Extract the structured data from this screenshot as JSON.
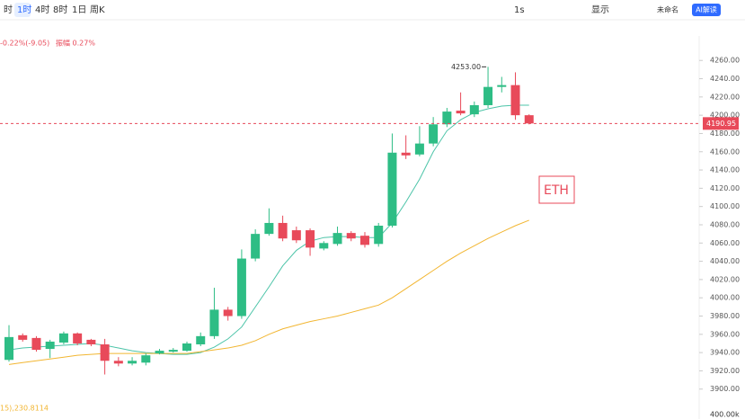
{
  "toolbar": {
    "intervals": [
      "时",
      "1时",
      "4时",
      "8时",
      "1日",
      "周K"
    ],
    "active_interval": 1,
    "right": [
      "1s",
      "显示",
      "未命名",
      "AI解读"
    ]
  },
  "info": {
    "change": "-0.22%(-9.05)",
    "amplitude": "振幅 0.27%",
    "volume_ma": "15),230.8114"
  },
  "chart_data": {
    "type": "candlestick",
    "annotation": "ETH",
    "categories": [
      null,
      null,
      null,
      null,
      null,
      null,
      null,
      null,
      null,
      null,
      null,
      null,
      null,
      null,
      null,
      null,
      null,
      null,
      null,
      null,
      null,
      null,
      null,
      null,
      null,
      null,
      null,
      null,
      null,
      null,
      null,
      null,
      null,
      null,
      null,
      null,
      null,
      null,
      null
    ],
    "open": [
      3932,
      3959,
      3956,
      3944,
      3951,
      3961,
      3954,
      3949,
      3931,
      3928,
      3929,
      3939,
      3941,
      3942,
      3949,
      3958,
      3987,
      3980,
      4043,
      4070,
      4082,
      4074,
      4074,
      4054,
      4059,
      4071,
      4068,
      4059,
      4079,
      4159,
      4157,
      4169,
      4190,
      4205,
      4201,
      4211,
      4231,
      4233,
      4200
    ],
    "close": [
      3957,
      3954,
      3943,
      3952,
      3961,
      3950,
      3949,
      3931,
      3928,
      3931,
      3937,
      3942,
      3943,
      3950,
      3958,
      3987,
      3980,
      4043,
      4070,
      4082,
      4065,
      4063,
      4055,
      4060,
      4071,
      4065,
      4058,
      4079,
      4159,
      4156,
      4169,
      4190,
      4204,
      4202,
      4211,
      4231,
      4233,
      4200,
      4191
    ],
    "high": [
      3970,
      3961,
      3958,
      3954,
      3963,
      3962,
      3955,
      3955,
      3935,
      3935,
      3939,
      3944,
      3945,
      3952,
      3962,
      4011,
      3990,
      4053,
      4075,
      4098,
      4090,
      4078,
      4076,
      4062,
      4078,
      4073,
      4072,
      4082,
      4180,
      4178,
      4188,
      4198,
      4208,
      4225,
      4215,
      4253,
      4242,
      4247,
      4201
    ],
    "low": [
      3930,
      3952,
      3941,
      3934,
      3949,
      3948,
      3947,
      3916,
      3925,
      3926,
      3926,
      3938,
      3940,
      3941,
      3947,
      3955,
      3975,
      3977,
      4040,
      4068,
      4062,
      4060,
      4046,
      4052,
      4057,
      4062,
      4055,
      4056,
      4077,
      4152,
      4155,
      4166,
      4187,
      4200,
      4198,
      4208,
      4225,
      4195,
      4190
    ],
    "high_label": "4253.00",
    "lines": [
      {
        "color": "#4cc4a8",
        "values": [
          3943,
          3945,
          3946,
          3947,
          3948,
          3949,
          3950,
          3948,
          3945,
          3942,
          3940,
          3939,
          3938,
          3938,
          3940,
          3946,
          3955,
          3968,
          3990,
          4012,
          4035,
          4052,
          4062,
          4066,
          4067,
          4067,
          4066,
          4066,
          4082,
          4105,
          4130,
          4160,
          4183,
          4195,
          4203,
          4207,
          4210,
          4211,
          4211
        ]
      },
      {
        "color": "#f2b632",
        "values": [
          3927,
          3929,
          3931,
          3933,
          3935,
          3937,
          3938,
          3939,
          3939,
          3939,
          3939,
          3939,
          3939,
          3939,
          3941,
          3943,
          3945,
          3948,
          3953,
          3960,
          3966,
          3970,
          3974,
          3977,
          3980,
          3984,
          3988,
          3992,
          4000,
          4010,
          4020,
          4030,
          4040,
          4049,
          4057,
          4065,
          4072,
          4079,
          4085
        ]
      }
    ],
    "up_color": "#2ebd85",
    "down_color": "#e84a5a",
    "last_price": 4190.95,
    "last_label": "4190.95",
    "ylim": [
      3883,
      4275
    ],
    "yticks": [
      {
        "value": 4260,
        "label": "4260.00"
      },
      {
        "value": 4240,
        "label": "4240.00"
      },
      {
        "value": 4220,
        "label": "4220.00"
      },
      {
        "value": 4200,
        "label": "4200.00"
      },
      {
        "value": 4180,
        "label": "4180.00"
      },
      {
        "value": 4160,
        "label": "4160.00"
      },
      {
        "value": 4140,
        "label": "4140.00"
      },
      {
        "value": 4120,
        "label": "4120.00"
      },
      {
        "value": 4100,
        "label": "4100.00"
      },
      {
        "value": 4080,
        "label": "4080.00"
      },
      {
        "value": 4060,
        "label": "4060.00"
      },
      {
        "value": 4040,
        "label": "4040.00"
      },
      {
        "value": 4020,
        "label": "4020.00"
      },
      {
        "value": 4000,
        "label": "4000.00"
      },
      {
        "value": 3980,
        "label": "3980.00"
      },
      {
        "value": 3960,
        "label": "3960.00"
      },
      {
        "value": 3940,
        "label": "3940.00"
      },
      {
        "value": 3920,
        "label": "3920.00"
      },
      {
        "value": 3900,
        "label": "3900.00"
      }
    ],
    "volume_axis_label": "400.00k"
  }
}
